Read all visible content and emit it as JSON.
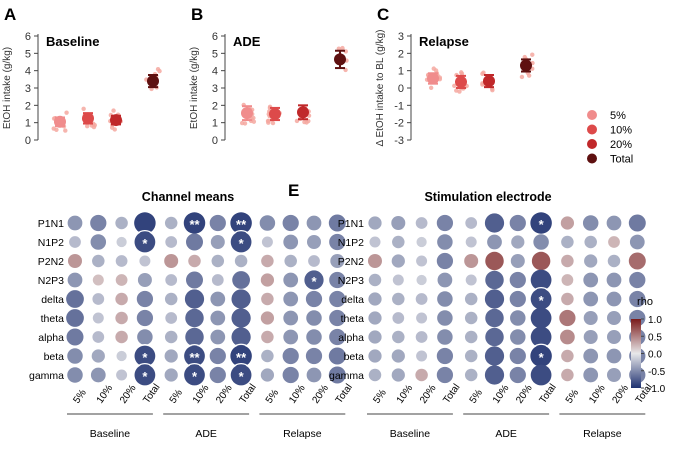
{
  "colors": {
    "c5": "#f08c8c",
    "c10": "#dd4a4a",
    "c20": "#c0282a",
    "total": "#5e1010",
    "dots": "#f4a8a0",
    "scale_pos": "#7a1a1a",
    "scale_neg": "#1e3170",
    "scale_mid": "#e8e8ea"
  },
  "chart_data": [
    {
      "panel": "A",
      "type": "scatter",
      "title": "Baseline",
      "ylabel": "EtOH intake (g/kg)",
      "ylim": [
        0,
        6
      ],
      "yticks": [
        "0",
        "1",
        "2",
        "3",
        "4",
        "5",
        "6"
      ],
      "categories": [
        "5%",
        "10%",
        "20%",
        "Total"
      ],
      "means": [
        1.05,
        1.25,
        1.15,
        3.4
      ],
      "errors": [
        0.25,
        0.3,
        0.25,
        0.35
      ]
    },
    {
      "panel": "B",
      "type": "scatter",
      "title": "ADE",
      "ylabel": "EtOH intake (g/kg)",
      "ylim": [
        0,
        6
      ],
      "yticks": [
        "0",
        "1",
        "2",
        "3",
        "4",
        "5",
        "6"
      ],
      "categories": [
        "5%",
        "10%",
        "20%",
        "Total"
      ],
      "means": [
        1.55,
        1.5,
        1.6,
        4.65
      ],
      "errors": [
        0.4,
        0.35,
        0.4,
        0.5
      ]
    },
    {
      "panel": "C",
      "type": "scatter",
      "title": "Relapse",
      "ylabel": "Δ EtOH intake to BL (g/kg)",
      "ylim": [
        -3,
        3
      ],
      "yticks": [
        "-3",
        "-2",
        "-1",
        "0",
        "1",
        "2",
        "3"
      ],
      "categories": [
        "5%",
        "10%",
        "20%",
        "Total"
      ],
      "means": [
        0.55,
        0.35,
        0.4,
        1.3
      ],
      "errors": [
        0.3,
        0.35,
        0.35,
        0.35
      ],
      "legend": [
        "5%",
        "10%",
        "20%",
        "Total"
      ]
    },
    {
      "panel": "D",
      "type": "heatmap",
      "title": "Channel means",
      "rows": [
        "P1N1",
        "N1P2",
        "P2N2",
        "N2P3",
        "delta",
        "theta",
        "alpha",
        "beta",
        "gamma"
      ],
      "columns": [
        "5%",
        "10%",
        "20%",
        "Total"
      ],
      "groups": [
        "Baseline",
        "ADE",
        "Relapse"
      ],
      "values": [
        [
          -0.45,
          -0.55,
          -0.3,
          -0.9,
          -0.3,
          -0.9,
          -0.55,
          -0.9,
          -0.5,
          -0.55,
          -0.45,
          -0.6
        ],
        [
          -0.25,
          -0.5,
          -0.15,
          -0.85,
          -0.25,
          -0.6,
          -0.4,
          -0.85,
          -0.2,
          -0.45,
          -0.4,
          -0.55
        ],
        [
          0.4,
          -0.3,
          -0.25,
          -0.2,
          0.4,
          0.3,
          -0.3,
          -0.3,
          0.3,
          -0.3,
          -0.25,
          -0.4
        ],
        [
          -0.45,
          0.2,
          0.25,
          -0.4,
          -0.25,
          -0.6,
          -0.25,
          -0.65,
          0.35,
          -0.45,
          -0.75,
          -0.55
        ],
        [
          -0.65,
          -0.25,
          0.3,
          -0.55,
          -0.3,
          -0.75,
          -0.45,
          -0.75,
          0.3,
          -0.45,
          -0.55,
          -0.55
        ],
        [
          -0.65,
          -0.2,
          0.3,
          -0.55,
          -0.25,
          -0.7,
          -0.45,
          -0.75,
          0.35,
          -0.45,
          -0.5,
          -0.55
        ],
        [
          -0.6,
          -0.25,
          0.3,
          -0.5,
          -0.3,
          -0.7,
          -0.45,
          -0.75,
          0.3,
          -0.45,
          -0.5,
          -0.55
        ],
        [
          -0.5,
          -0.35,
          -0.15,
          -0.85,
          -0.35,
          -0.85,
          -0.55,
          -0.9,
          -0.3,
          -0.55,
          -0.55,
          -0.6
        ],
        [
          -0.5,
          -0.45,
          -0.2,
          -0.85,
          -0.35,
          -0.85,
          -0.55,
          -0.85,
          -0.35,
          -0.55,
          -0.45,
          -0.6
        ]
      ],
      "stars": [
        [
          0,
          0,
          0,
          0,
          0,
          2,
          0,
          2,
          0,
          0,
          0,
          0
        ],
        [
          0,
          0,
          0,
          1,
          0,
          0,
          0,
          1,
          0,
          0,
          0,
          0
        ],
        [
          0,
          0,
          0,
          0,
          0,
          0,
          0,
          0,
          0,
          0,
          0,
          0
        ],
        [
          0,
          0,
          0,
          0,
          0,
          0,
          0,
          0,
          0,
          0,
          1,
          0
        ],
        [
          0,
          0,
          0,
          0,
          0,
          0,
          0,
          0,
          0,
          0,
          0,
          0
        ],
        [
          0,
          0,
          0,
          0,
          0,
          0,
          0,
          0,
          0,
          0,
          0,
          0
        ],
        [
          0,
          0,
          0,
          0,
          0,
          0,
          0,
          0,
          0,
          0,
          0,
          0
        ],
        [
          0,
          0,
          0,
          1,
          0,
          2,
          0,
          2,
          0,
          0,
          0,
          0
        ],
        [
          0,
          0,
          0,
          1,
          0,
          1,
          0,
          1,
          0,
          0,
          0,
          0
        ]
      ]
    },
    {
      "panel": "E",
      "type": "heatmap",
      "title": "Stimulation electrode",
      "rows": [
        "P1N1",
        "N1P2",
        "P2N2",
        "N2P3",
        "delta",
        "theta",
        "alpha",
        "beta",
        "gamma"
      ],
      "columns": [
        "5%",
        "10%",
        "20%",
        "Total"
      ],
      "groups": [
        "Baseline",
        "ADE",
        "Relapse"
      ],
      "values": [
        [
          -0.35,
          -0.4,
          -0.25,
          -0.55,
          -0.25,
          -0.75,
          -0.55,
          -0.9,
          0.35,
          -0.5,
          -0.45,
          -0.6
        ],
        [
          -0.2,
          -0.3,
          -0.15,
          -0.5,
          -0.2,
          -0.45,
          -0.35,
          -0.5,
          -0.3,
          -0.3,
          0.25,
          -0.45
        ],
        [
          0.4,
          -0.35,
          -0.2,
          -0.55,
          0.4,
          0.7,
          -0.4,
          0.7,
          0.3,
          -0.35,
          -0.3,
          0.6
        ],
        [
          -0.3,
          -0.2,
          -0.15,
          -0.45,
          -0.2,
          -0.7,
          -0.55,
          -0.85,
          0.25,
          -0.45,
          -0.45,
          -0.55
        ],
        [
          -0.35,
          -0.3,
          -0.25,
          -0.5,
          -0.3,
          -0.75,
          -0.55,
          -0.85,
          0.3,
          -0.45,
          -0.45,
          -0.55
        ],
        [
          -0.35,
          -0.25,
          -0.2,
          -0.5,
          -0.3,
          -0.7,
          -0.5,
          -0.85,
          0.55,
          -0.4,
          -0.4,
          -0.55
        ],
        [
          -0.35,
          -0.3,
          -0.25,
          -0.5,
          -0.3,
          -0.7,
          -0.5,
          -0.85,
          0.45,
          -0.4,
          -0.4,
          -0.55
        ],
        [
          -0.35,
          -0.35,
          -0.2,
          -0.55,
          -0.3,
          -0.75,
          -0.55,
          -0.9,
          0.3,
          -0.45,
          -0.45,
          -0.55
        ],
        [
          -0.3,
          -0.35,
          0.3,
          -0.55,
          -0.3,
          -0.75,
          -0.55,
          -0.85,
          0.3,
          -0.45,
          -0.4,
          -0.55
        ]
      ],
      "stars": [
        [
          0,
          0,
          0,
          0,
          0,
          0,
          0,
          1,
          0,
          0,
          0,
          0
        ],
        [
          0,
          0,
          0,
          0,
          0,
          0,
          0,
          0,
          0,
          0,
          0,
          0
        ],
        [
          0,
          0,
          0,
          0,
          0,
          0,
          0,
          0,
          0,
          0,
          0,
          0
        ],
        [
          0,
          0,
          0,
          0,
          0,
          0,
          0,
          0,
          0,
          0,
          0,
          0
        ],
        [
          0,
          0,
          0,
          0,
          0,
          0,
          0,
          1,
          0,
          0,
          0,
          0
        ],
        [
          0,
          0,
          0,
          0,
          0,
          0,
          0,
          0,
          0,
          0,
          0,
          0
        ],
        [
          0,
          0,
          0,
          0,
          0,
          0,
          0,
          0,
          0,
          0,
          0,
          0
        ],
        [
          0,
          0,
          0,
          0,
          0,
          0,
          0,
          1,
          0,
          0,
          0,
          0
        ],
        [
          0,
          0,
          0,
          0,
          0,
          0,
          0,
          0,
          0,
          0,
          0,
          0
        ]
      ]
    }
  ],
  "colorbar": {
    "title": "rho",
    "ticks": [
      1.0,
      0.5,
      0.0,
      -0.5,
      -1.0
    ],
    "tick_labels": [
      "1.0",
      "0.5",
      "0.0",
      "-0.5",
      "-1.0"
    ]
  },
  "legend_title": ""
}
